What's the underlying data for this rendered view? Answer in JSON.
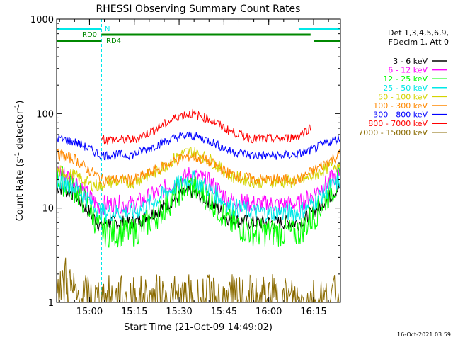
{
  "chart_data": {
    "type": "line",
    "title": "RHESSI Observing Summary Count Rates",
    "xlabel": "Start Time (21-Oct-09 14:49:02)",
    "ylabel_main": "Count Rate (s",
    "ylabel_sup1": "-1",
    "ylabel_mid": " detector",
    "ylabel_sup2": "-1",
    "ylabel_end": ")",
    "yscale": "log",
    "ylim": [
      1,
      1000
    ],
    "xlim": [
      "14:49:02",
      "16:24:00"
    ],
    "x_ticks": [
      "15:00",
      "15:15",
      "15:30",
      "15:45",
      "16:00",
      "16:15"
    ],
    "y_ticks": [
      "1",
      "10",
      "100",
      "1000"
    ],
    "legend": {
      "header1": "Det 1,3,4,5,6,9,",
      "header2": "FDecim 1, Att 0",
      "placement": "right"
    },
    "timestamp": "16-Oct-2021 03:59",
    "flags": [
      {
        "label": "N",
        "color": "#00e8e8",
        "segments": [
          [
            "14:49",
            "15:04"
          ],
          [
            "16:10",
            "16:24"
          ]
        ]
      },
      {
        "label": "RD0",
        "color": "#008800",
        "segments": [
          [
            "15:04",
            "16:14"
          ]
        ]
      },
      {
        "label": "RD4",
        "color": "#008800",
        "segments": [
          [
            "14:49",
            "15:04"
          ],
          [
            "16:15",
            "16:24"
          ]
        ]
      }
    ],
    "vlines": [
      {
        "time": "14:49",
        "style": "solid",
        "color": "#00e8e8"
      },
      {
        "time": "15:04",
        "style": "dashed",
        "color": "#00e8e8"
      },
      {
        "time": "16:10",
        "style": "solid",
        "color": "#00e8e8"
      },
      {
        "time": "16:24",
        "style": "dashed",
        "color": "#00e8e8"
      }
    ],
    "series": [
      {
        "name": "3 - 6 keV",
        "color": "#000000",
        "t": [
          "14:49",
          "14:55",
          "15:00",
          "15:04",
          "15:05",
          "15:15",
          "15:22",
          "15:30",
          "15:34",
          "15:40",
          "15:47",
          "15:55",
          "16:05",
          "16:10",
          "16:15",
          "16:20",
          "16:24"
        ],
        "v": [
          17,
          14,
          9,
          6.3,
          7,
          7,
          9,
          13.5,
          15,
          12,
          7.5,
          7,
          7,
          7,
          9,
          13,
          17
        ]
      },
      {
        "name": "6 - 12 keV",
        "color": "#ff00ff",
        "t": [
          "14:49",
          "14:55",
          "15:00",
          "15:04",
          "15:05",
          "15:15",
          "15:22",
          "15:30",
          "15:34",
          "15:40",
          "15:47",
          "15:55",
          "16:05",
          "16:10",
          "16:15",
          "16:20",
          "16:24"
        ],
        "v": [
          25,
          20,
          13,
          10,
          11,
          11,
          14,
          20,
          23,
          19,
          12,
          11,
          11,
          11,
          14,
          19,
          24
        ]
      },
      {
        "name": "12 - 25 keV",
        "color": "#00ff00",
        "t": [
          "14:49",
          "14:55",
          "15:00",
          "15:04",
          "15:05",
          "15:15",
          "15:22",
          "15:30",
          "15:34",
          "15:40",
          "15:47",
          "15:55",
          "16:05",
          "16:10",
          "16:15",
          "16:20",
          "16:24"
        ],
        "v": [
          21,
          16,
          10,
          5.5,
          5.5,
          5.5,
          8,
          15,
          17,
          13,
          7,
          5.5,
          5.5,
          5.5,
          8,
          14,
          20
        ]
      },
      {
        "name": "25 - 50 keV",
        "color": "#00e8e8",
        "t": [
          "14:49",
          "14:55",
          "15:00",
          "15:04",
          "15:05",
          "15:15",
          "15:22",
          "15:30",
          "15:34",
          "15:40",
          "15:47",
          "15:55",
          "16:05",
          "16:10",
          "16:15",
          "16:20",
          "16:24"
        ],
        "v": [
          20,
          17,
          12,
          9,
          9,
          9,
          12,
          18,
          21,
          16,
          10.5,
          9,
          9,
          9,
          11.5,
          16,
          20
        ]
      },
      {
        "name": "50 - 100 keV",
        "color": "#d4d400",
        "t": [
          "14:49",
          "14:55",
          "15:00",
          "15:04",
          "15:05",
          "15:15",
          "15:22",
          "15:30",
          "15:34",
          "15:40",
          "15:47",
          "15:55",
          "16:05",
          "16:10",
          "16:15",
          "16:20",
          "16:24"
        ],
        "v": [
          25,
          22,
          18,
          17,
          19,
          19,
          24,
          36,
          40,
          33,
          22,
          19,
          19,
          19,
          22,
          27,
          30
        ]
      },
      {
        "name": "100 - 300 keV",
        "color": "#ff8800",
        "t": [
          "14:49",
          "14:55",
          "15:00",
          "15:04",
          "15:05",
          "15:15",
          "15:22",
          "15:30",
          "15:34",
          "15:40",
          "15:47",
          "15:55",
          "16:05",
          "16:10",
          "16:15",
          "16:20",
          "16:24"
        ],
        "v": [
          37,
          33,
          25,
          20,
          20,
          20,
          25,
          33,
          36,
          31,
          23,
          20,
          20,
          20,
          25,
          31,
          38
        ]
      },
      {
        "name": "300 - 800 keV",
        "color": "#0000ff",
        "t": [
          "14:49",
          "14:55",
          "15:00",
          "15:04",
          "15:05",
          "15:15",
          "15:22",
          "15:30",
          "15:34",
          "15:40",
          "15:47",
          "15:55",
          "16:05",
          "16:10",
          "16:15",
          "16:20",
          "16:24"
        ],
        "v": [
          55,
          50,
          42,
          36,
          36,
          37,
          46,
          57,
          59,
          52,
          40,
          36,
          36,
          37,
          42,
          50,
          55
        ]
      },
      {
        "name": "800 - 7000 keV",
        "color": "#ff0000",
        "t": [
          "15:04",
          "15:05",
          "15:15",
          "15:22",
          "15:30",
          "15:34",
          "15:40",
          "15:47",
          "15:55",
          "16:05",
          "16:10",
          "16:14"
        ],
        "v": [
          58,
          53,
          53,
          68,
          95,
          100,
          88,
          65,
          54,
          54,
          58,
          72
        ]
      },
      {
        "name": "7000 - 15000 keV",
        "color": "#8a6a00",
        "t": [
          "14:49",
          "14:50",
          "14:51",
          "14:52",
          "14:53",
          "14:55",
          "15:00",
          "16:24"
        ],
        "v": [
          1.5,
          1.9,
          1.2,
          1.9,
          1.5,
          1.1,
          1.0,
          1.0
        ]
      }
    ]
  }
}
